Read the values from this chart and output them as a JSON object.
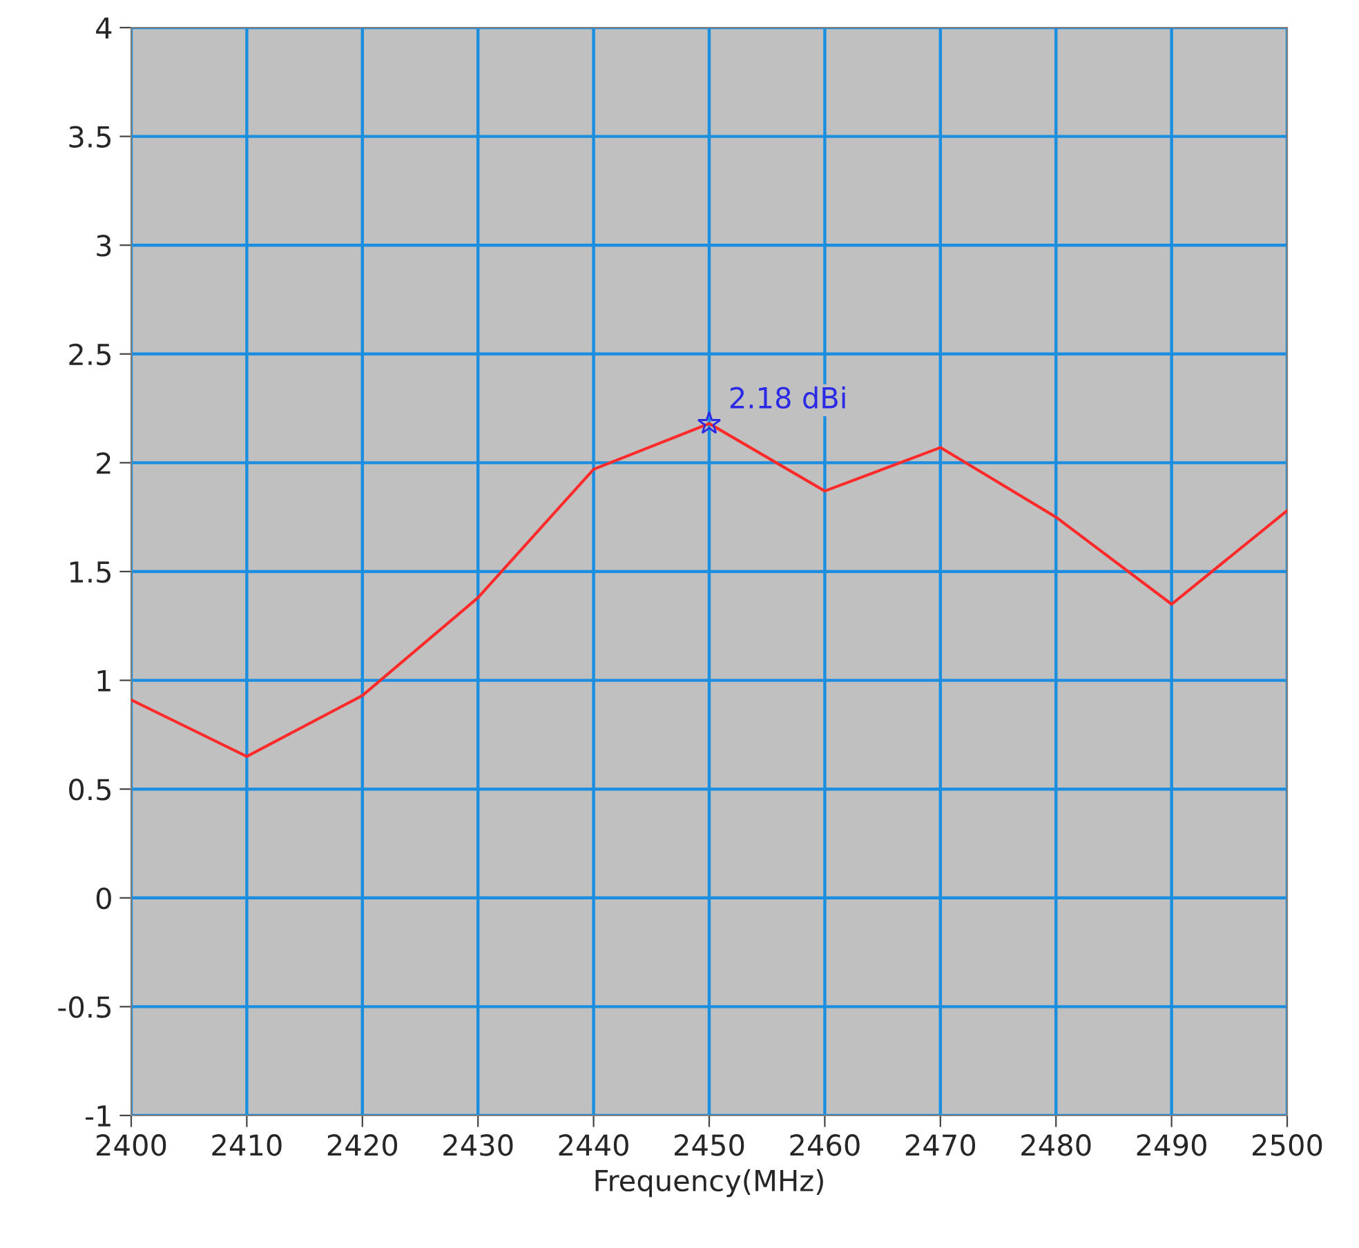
{
  "chart_data": {
    "type": "line",
    "xlabel": "Frequency(MHz)",
    "x": [
      2400,
      2410,
      2420,
      2430,
      2440,
      2450,
      2460,
      2470,
      2480,
      2490,
      2500
    ],
    "series": [
      {
        "color": "#ff2a2a",
        "values": [
          0.91,
          0.65,
          0.93,
          1.38,
          1.97,
          2.18,
          1.87,
          2.07,
          1.75,
          1.35,
          1.78
        ]
      }
    ],
    "xlim": [
      2400,
      2500
    ],
    "xticks": [
      2400,
      2410,
      2420,
      2430,
      2440,
      2450,
      2460,
      2470,
      2480,
      2490,
      2500
    ],
    "ylim": [
      -1,
      4
    ],
    "yticks": [
      -1,
      -0.5,
      0,
      0.5,
      1,
      1.5,
      2,
      2.5,
      3,
      3.5,
      4
    ],
    "grid": true,
    "marker": "none",
    "line_style": "solid",
    "annotations": [
      {
        "text": "2.18 dBi",
        "x": 2450,
        "y": 2.18
      }
    ]
  }
}
